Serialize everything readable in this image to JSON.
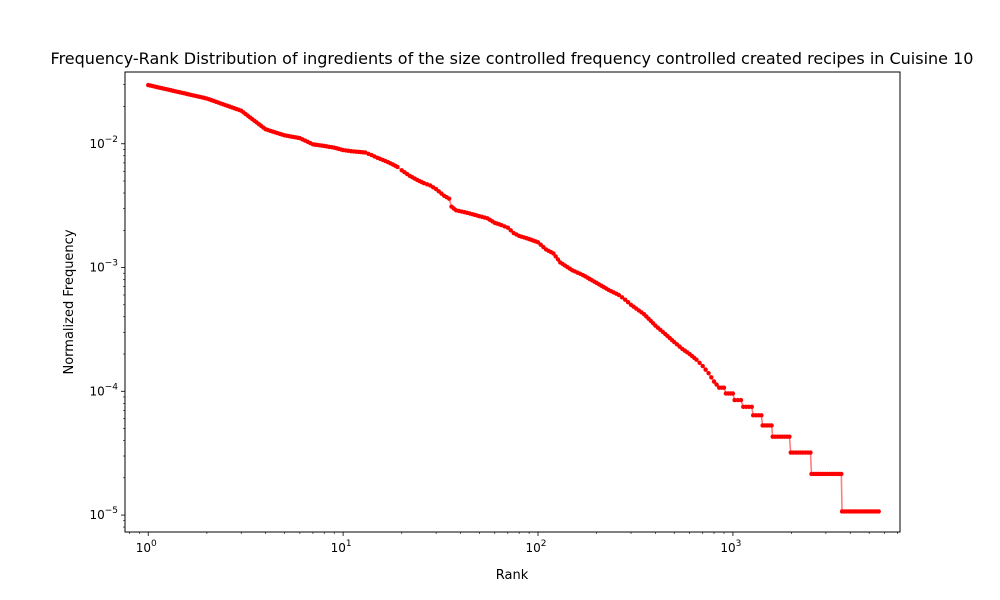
{
  "chart_data": {
    "type": "line",
    "title": "Frequency-Rank Distribution of ingredients of the size controlled frequency controlled created recipes in Cuisine 10",
    "xlabel": "Rank",
    "ylabel": "Normalized Frequency",
    "xscale": "log",
    "yscale": "log",
    "xlim": [
      0.76,
      7200
    ],
    "ylim": [
      7.3e-06,
      0.038
    ],
    "x_ticks": [
      {
        "value": 1,
        "base": "10",
        "exp": "0"
      },
      {
        "value": 10,
        "base": "10",
        "exp": "1"
      },
      {
        "value": 100,
        "base": "10",
        "exp": "2"
      },
      {
        "value": 1000,
        "base": "10",
        "exp": "3"
      }
    ],
    "y_ticks": [
      {
        "value": 1e-05,
        "base": "10",
        "exp": "−5"
      },
      {
        "value": 0.0001,
        "base": "10",
        "exp": "−4"
      },
      {
        "value": 0.001,
        "base": "10",
        "exp": "−3"
      },
      {
        "value": 0.01,
        "base": "10",
        "exp": "−2"
      }
    ],
    "grid": false,
    "legend": "none",
    "series": [
      {
        "line_color": "#ff7f7f",
        "marker_color": "#ff0000",
        "points": [
          [
            1,
            0.0298
          ],
          [
            2,
            0.0232
          ],
          [
            3,
            0.0185
          ],
          [
            4,
            0.0131
          ],
          [
            5,
            0.0117
          ],
          [
            6,
            0.0111
          ],
          [
            7,
            0.0099
          ],
          [
            8,
            0.0096
          ],
          [
            9,
            0.0093
          ],
          [
            10,
            0.0089
          ],
          [
            11,
            0.0087
          ],
          [
            12,
            0.0086
          ],
          [
            13,
            0.0085
          ],
          [
            14,
            0.0081
          ],
          [
            15,
            0.0077
          ],
          [
            16,
            0.0074
          ],
          [
            17,
            0.0071
          ],
          [
            18,
            0.0068
          ],
          [
            19,
            0.0065
          ],
          [
            20,
            0.0061
          ],
          [
            22,
            0.0055
          ],
          [
            24,
            0.0051
          ],
          [
            26,
            0.0048
          ],
          [
            28,
            0.0046
          ],
          [
            30,
            0.0043
          ],
          [
            33,
            0.0038
          ],
          [
            35,
            0.0036
          ],
          [
            36,
            0.0031
          ],
          [
            38,
            0.0029
          ],
          [
            42,
            0.0028
          ],
          [
            46,
            0.0027
          ],
          [
            50,
            0.0026
          ],
          [
            55,
            0.0025
          ],
          [
            60,
            0.0023
          ],
          [
            65,
            0.0022
          ],
          [
            70,
            0.0021
          ],
          [
            75,
            0.0019
          ],
          [
            80,
            0.0018
          ],
          [
            90,
            0.0017
          ],
          [
            100,
            0.0016
          ],
          [
            110,
            0.0014
          ],
          [
            120,
            0.0013
          ],
          [
            130,
            0.0011
          ],
          [
            150,
            0.00095
          ],
          [
            170,
            0.00087
          ],
          [
            200,
            0.00075
          ],
          [
            230,
            0.00066
          ],
          [
            260,
            0.0006
          ],
          [
            280,
            0.00055
          ],
          [
            300,
            0.0005
          ],
          [
            350,
            0.00042
          ],
          [
            400,
            0.00034
          ],
          [
            450,
            0.00029
          ],
          [
            500,
            0.00025
          ],
          [
            550,
            0.00022
          ],
          [
            600,
            0.0002
          ],
          [
            650,
            0.00018
          ],
          [
            700,
            0.00016
          ],
          [
            750,
            0.00014
          ],
          [
            800,
            0.00012
          ],
          [
            850,
            0.000107
          ],
          [
            900,
            0.000107
          ],
          [
            920,
            9.6e-05
          ],
          [
            1000,
            9.6e-05
          ],
          [
            1020,
            8.5e-05
          ],
          [
            1100,
            8.5e-05
          ],
          [
            1130,
            7.5e-05
          ],
          [
            1250,
            7.5e-05
          ],
          [
            1270,
            6.4e-05
          ],
          [
            1400,
            6.4e-05
          ],
          [
            1420,
            5.3e-05
          ],
          [
            1580,
            5.3e-05
          ],
          [
            1600,
            4.3e-05
          ],
          [
            1950,
            4.3e-05
          ],
          [
            1980,
            3.2e-05
          ],
          [
            2500,
            3.2e-05
          ],
          [
            2530,
            2.15e-05
          ],
          [
            3600,
            2.15e-05
          ],
          [
            3630,
            1.07e-05
          ],
          [
            5600,
            1.07e-05
          ]
        ]
      }
    ]
  }
}
